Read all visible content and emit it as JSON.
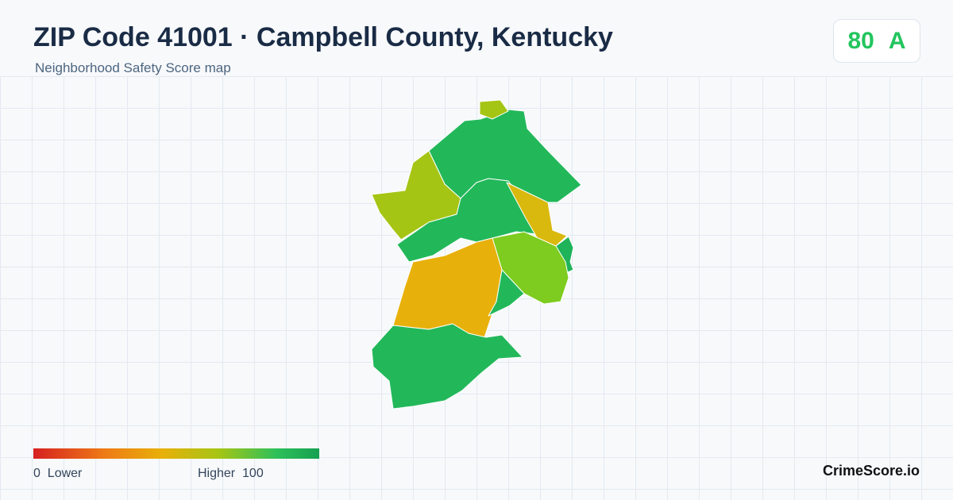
{
  "header": {
    "title": "ZIP Code 41001 · Campbell County, Kentucky",
    "subtitle": "Neighborhood Safety Score map"
  },
  "score": {
    "value": 80,
    "grade": "A"
  },
  "legend": {
    "min": 0,
    "min_label": "Lower",
    "max_label": "Higher",
    "max": 100
  },
  "brand": "CrimeScore.io"
}
